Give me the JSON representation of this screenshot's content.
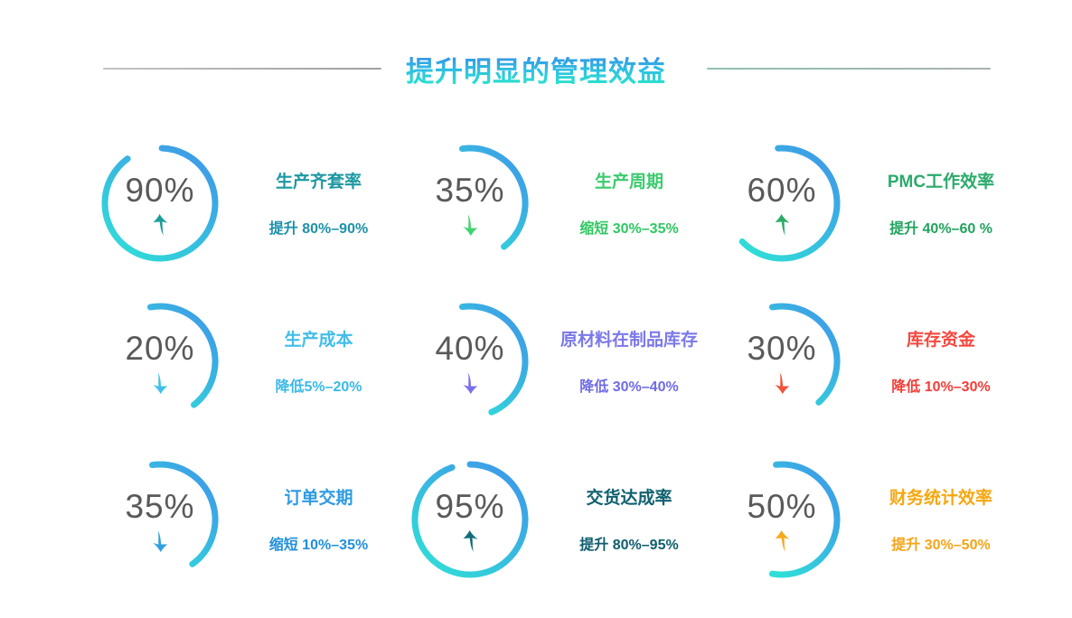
{
  "header": {
    "divider_color_left": "#a5a8a8",
    "divider_color_right": "#9ab4ac"
  },
  "chart_data": {
    "type": "gauge",
    "title": "提升明显的管理效益",
    "title_gradient": [
      "#3b7ce8",
      "#2aeec6"
    ],
    "layout": {
      "rows": 3,
      "cols": 3,
      "legend": "none",
      "grid": "off"
    },
    "ring_gradient": [
      "#3f97e9",
      "#30ded7"
    ],
    "ring_stroke_width": 7,
    "value_color": "#595959",
    "items": [
      {
        "label": "生产齐套率",
        "value": 90,
        "value_label": "90%",
        "change": "提升 80%–90%",
        "direction": "up",
        "title_color": "#1d98a2",
        "change_color": "#1d91ab",
        "arrow_color": "#1d9d98",
        "arc_start_deg": 2,
        "arc_sweep_deg": 322
      },
      {
        "label": "生产周期",
        "value": 35,
        "value_label": "35%",
        "change": "缩短 30%–35%",
        "direction": "down",
        "title_color": "#3bcb6e",
        "change_color": "#30c763",
        "arrow_color": "#3ed36f",
        "arc_start_deg": -8,
        "arc_sweep_deg": 150
      },
      {
        "label": "PMC工作效率",
        "value": 60,
        "value_label": "60%",
        "change": "提升 40%–60 %",
        "direction": "up",
        "title_color": "#2baa6c",
        "change_color": "#21a35f",
        "arrow_color": "#2bab66",
        "arc_start_deg": -4,
        "arc_sweep_deg": 230
      },
      {
        "label": "生产成本",
        "value": 20,
        "value_label": "20%",
        "change": "降低5%–20%",
        "direction": "down",
        "title_color": "#41bde9",
        "change_color": "#39b9e8",
        "arrow_color": "#41c0ea",
        "arc_start_deg": -10,
        "arc_sweep_deg": 152
      },
      {
        "label": "原材料在制品库存",
        "value": 40,
        "value_label": "40%",
        "change": "降低 30%–40%",
        "direction": "down",
        "title_color": "#7b78e9",
        "change_color": "#6f6ce6",
        "arrow_color": "#7a70e8",
        "arc_start_deg": -8,
        "arc_sweep_deg": 165
      },
      {
        "label": "库存资金",
        "value": 30,
        "value_label": "30%",
        "change": "降低 10%–30%",
        "direction": "down",
        "title_color": "#f5473e",
        "change_color": "#f43e39",
        "arrow_color": "#f4503a",
        "arc_start_deg": -10,
        "arc_sweep_deg": 148
      },
      {
        "label": "订单交期",
        "value": 35,
        "value_label": "35%",
        "change": "缩短 10%–35%",
        "direction": "down",
        "title_color": "#2e9be2",
        "change_color": "#2190dc",
        "arrow_color": "#2f9fe2",
        "arc_start_deg": -8,
        "arc_sweep_deg": 152
      },
      {
        "label": "交货达成率",
        "value": 95,
        "value_label": "95%",
        "change": "提升 80%–95%",
        "direction": "up",
        "title_color": "#11606e",
        "change_color": "#0f5d6e",
        "arrow_color": "#126c78",
        "arc_start_deg": 0,
        "arc_sweep_deg": 341
      },
      {
        "label": "财务统计效率",
        "value": 50,
        "value_label": "50%",
        "change": "提升 30%–50%",
        "direction": "up",
        "title_color": "#f6a70f",
        "change_color": "#f5a418",
        "arrow_color": "#f6a81a",
        "arc_start_deg": -6,
        "arc_sweep_deg": 196
      }
    ]
  }
}
